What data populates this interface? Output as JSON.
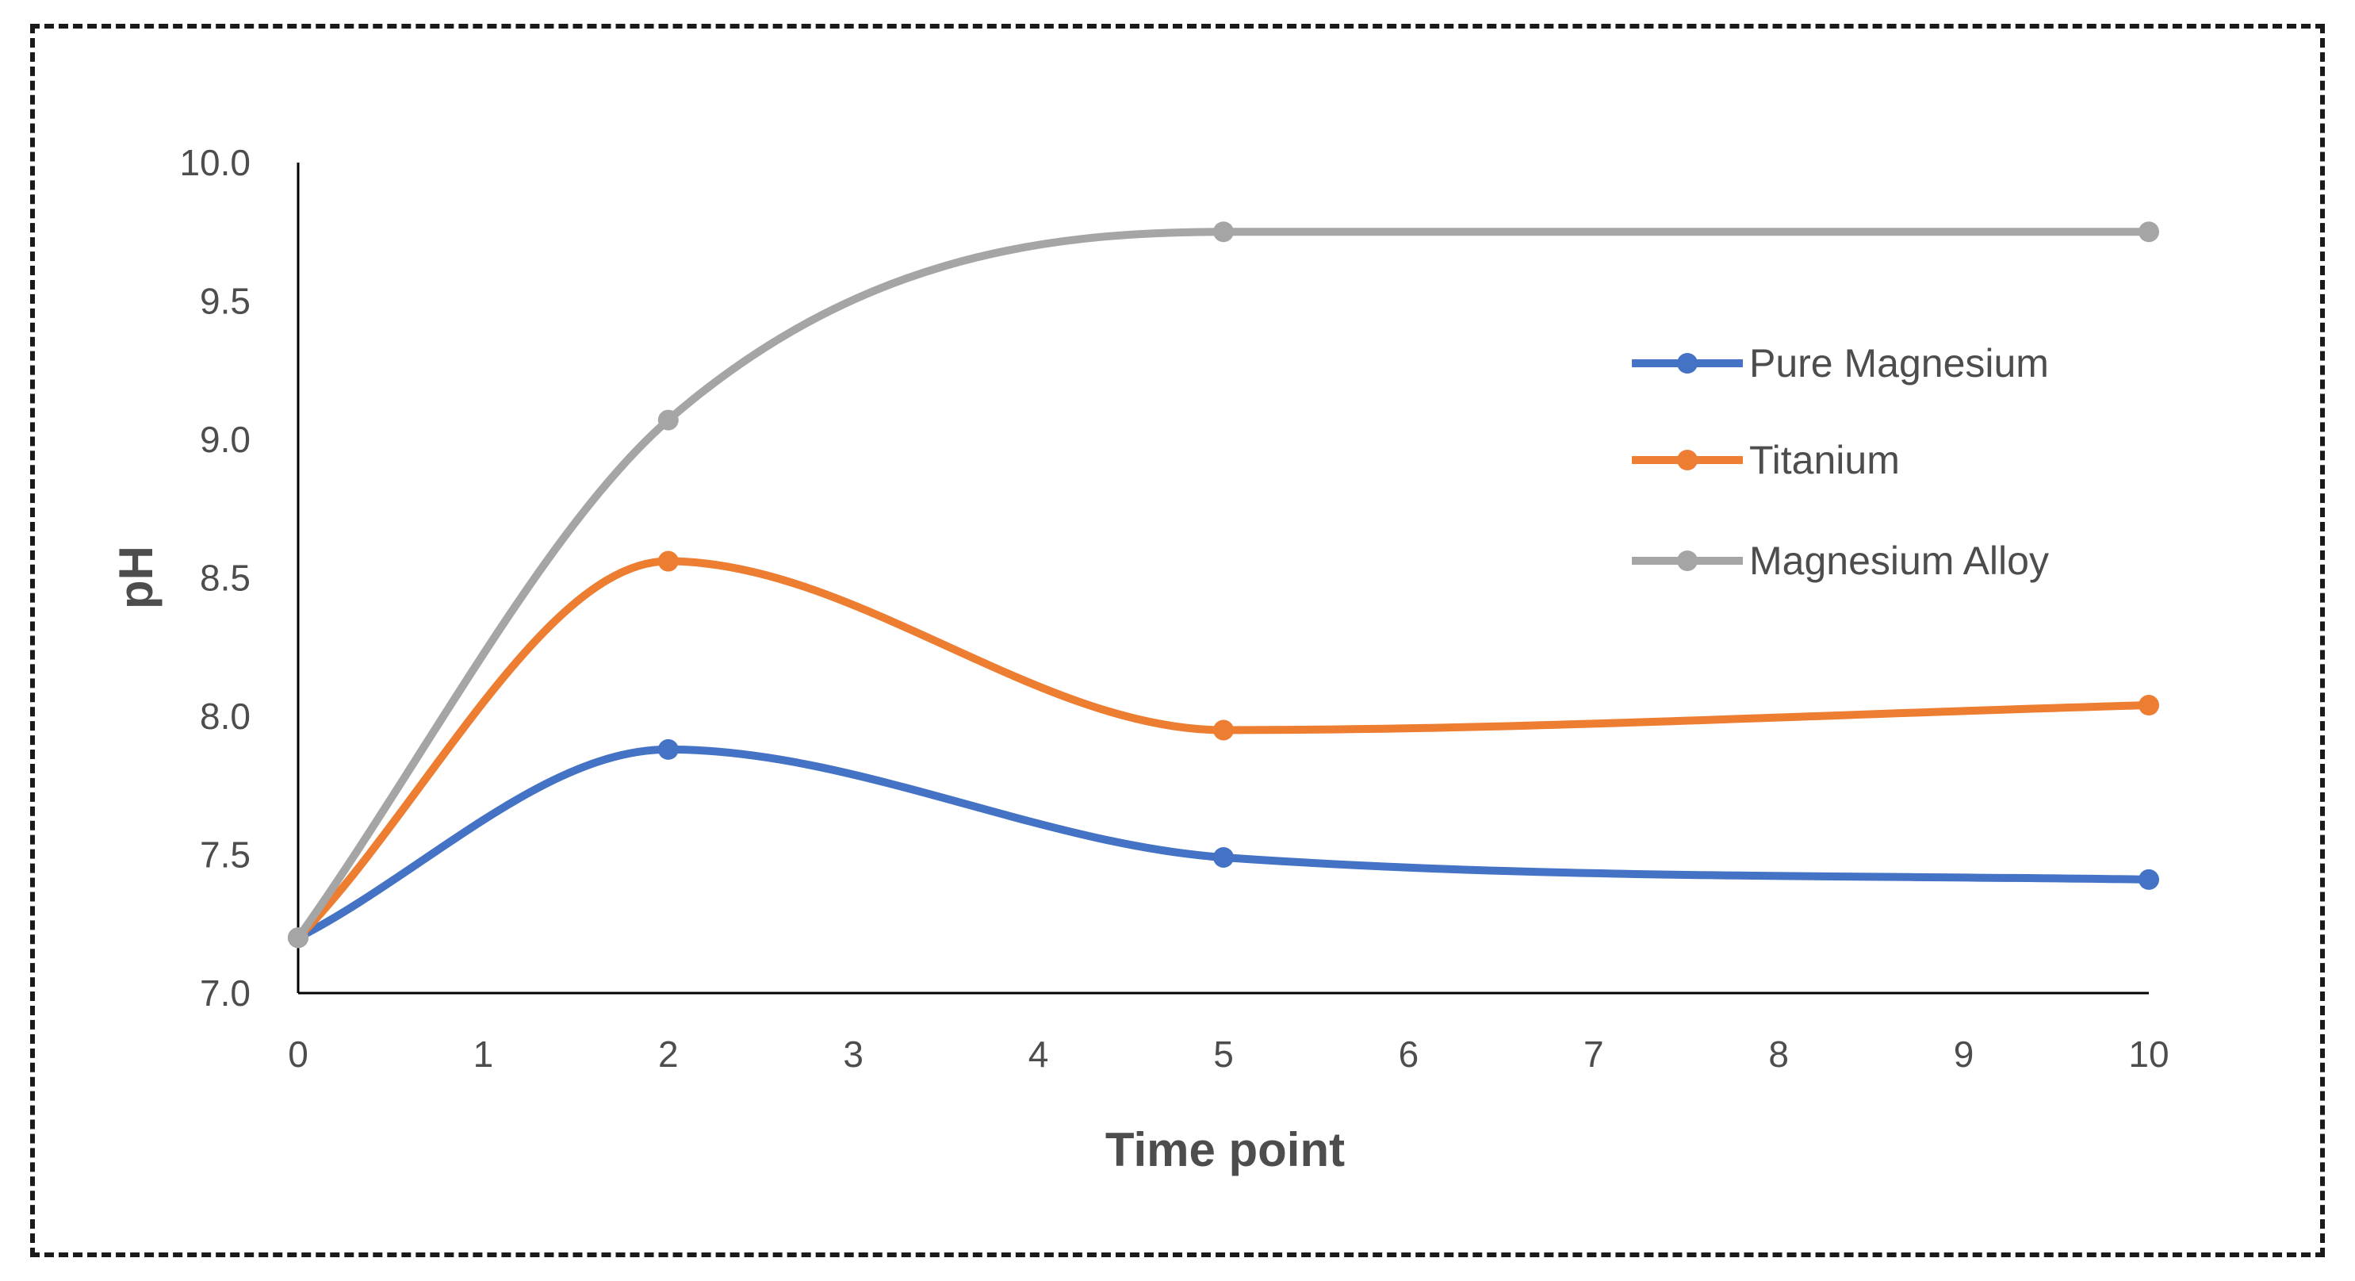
{
  "chart_data": {
    "type": "line",
    "title": "",
    "xlabel": "Time point",
    "ylabel": "pH",
    "x_ticks": [
      "0",
      "1",
      "2",
      "3",
      "4",
      "5",
      "6",
      "7",
      "8",
      "9",
      "10"
    ],
    "y_ticks": [
      "7.0",
      "7.5",
      "8.0",
      "8.5",
      "9.0",
      "9.5",
      "10.0"
    ],
    "xlim": [
      0,
      10
    ],
    "ylim": [
      7.0,
      10.0
    ],
    "grid": false,
    "legend_position": "right",
    "series": [
      {
        "name": "Pure Magnesium",
        "color": "#4472c4",
        "x": [
          0,
          2,
          5,
          10
        ],
        "values": [
          7.2,
          7.88,
          7.49,
          7.41
        ]
      },
      {
        "name": "Titanium",
        "color": "#ed7d31",
        "x": [
          0,
          2,
          5,
          10
        ],
        "values": [
          7.2,
          8.56,
          7.95,
          8.04
        ]
      },
      {
        "name": "Magnesium Alloy",
        "color": "#a5a5a5",
        "x": [
          0,
          2,
          5,
          10
        ],
        "values": [
          7.2,
          9.07,
          9.75,
          9.75
        ]
      }
    ]
  }
}
